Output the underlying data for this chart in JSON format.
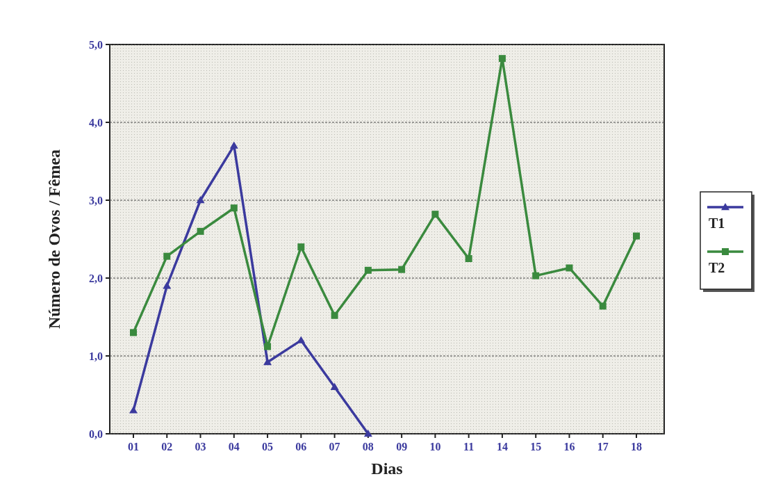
{
  "chart_data": {
    "type": "line",
    "xlabel": "Dias",
    "ylabel": "Número de Ovos / Fêmea",
    "categories": [
      "01",
      "02",
      "03",
      "04",
      "05",
      "06",
      "07",
      "08",
      "09",
      "10",
      "11",
      "14",
      "15",
      "16",
      "17",
      "18"
    ],
    "ylim": [
      0,
      5
    ],
    "yticks": [
      {
        "value": 0,
        "label": "0,0"
      },
      {
        "value": 1,
        "label": "1,0"
      },
      {
        "value": 2,
        "label": "2,0"
      },
      {
        "value": 3,
        "label": "3,0"
      },
      {
        "value": 4,
        "label": "4,0"
      },
      {
        "value": 5,
        "label": "5,0"
      }
    ],
    "grid": "y",
    "legend": "right",
    "line_style": "solid",
    "series": [
      {
        "name": "T1",
        "color": "#3b3a9e",
        "marker": "triangle",
        "values": [
          0.3,
          1.9,
          3.0,
          3.7,
          0.92,
          1.2,
          0.6,
          0.0,
          null,
          null,
          null,
          null,
          null,
          null,
          null,
          null
        ]
      },
      {
        "name": "T2",
        "color": "#3a8a3e",
        "marker": "square",
        "values": [
          1.3,
          2.28,
          2.6,
          2.9,
          1.12,
          2.4,
          1.52,
          2.1,
          2.11,
          2.82,
          2.25,
          4.82,
          2.03,
          2.13,
          1.64,
          2.54
        ]
      }
    ]
  }
}
